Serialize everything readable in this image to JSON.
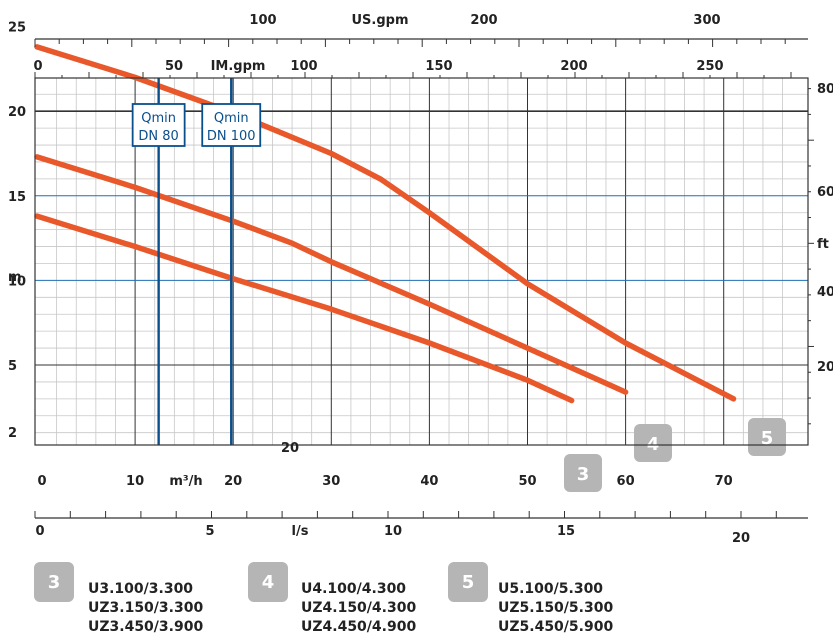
{
  "chart_data": {
    "type": "line",
    "title": "",
    "x": {
      "unit": "m³/h",
      "range": [
        0,
        78
      ],
      "ticks": [
        0,
        10,
        20,
        30,
        40,
        50,
        60,
        70
      ],
      "extra_label": "20"
    },
    "y": {
      "unit": "m",
      "range": [
        0,
        25
      ],
      "ticks": [
        2,
        5,
        10,
        15,
        20,
        25
      ]
    },
    "secondary_axes": {
      "us_gpm": {
        "label": "US.gpm",
        "ticks": [
          100,
          200,
          300
        ]
      },
      "im_gpm": {
        "label": "IM.gpm",
        "ticks": [
          0,
          50,
          100,
          150,
          200,
          250
        ]
      },
      "ls": {
        "label": "l/s",
        "ticks": [
          0,
          5,
          10,
          15,
          20
        ]
      },
      "ft": {
        "label": "ft",
        "ticks": [
          20,
          40,
          60,
          80
        ]
      }
    },
    "qmin_lines": [
      {
        "label_line1": "Qmin",
        "label_line2": "DN 80",
        "x": 12.4
      },
      {
        "label_line1": "Qmin",
        "label_line2": "DN 100",
        "x": 19.8
      }
    ],
    "series": [
      {
        "name": "3",
        "color": "#e8582a",
        "points": [
          [
            0,
            13.8
          ],
          [
            10,
            12.0
          ],
          [
            20,
            10.1
          ],
          [
            30,
            8.3
          ],
          [
            40,
            6.3
          ],
          [
            50,
            4.1
          ],
          [
            54.5,
            2.9
          ]
        ]
      },
      {
        "name": "4",
        "color": "#e8582a",
        "points": [
          [
            0,
            17.3
          ],
          [
            10,
            15.5
          ],
          [
            20,
            13.5
          ],
          [
            26,
            12.2
          ],
          [
            30,
            11.1
          ],
          [
            40,
            8.6
          ],
          [
            50,
            6.0
          ],
          [
            60,
            3.4
          ]
        ]
      },
      {
        "name": "5",
        "color": "#e8582a",
        "points": [
          [
            0,
            23.8
          ],
          [
            10,
            22.0
          ],
          [
            20,
            19.9
          ],
          [
            30,
            17.5
          ],
          [
            35,
            16.0
          ],
          [
            40,
            14.0
          ],
          [
            50,
            9.8
          ],
          [
            60,
            6.3
          ],
          [
            71,
            3.0
          ]
        ]
      }
    ],
    "grid": true
  },
  "legend": [
    {
      "badge": "3",
      "line1": "U3.100/3.300",
      "line2": "UZ3.150/3.300",
      "line3": "UZ3.450/3.900"
    },
    {
      "badge": "4",
      "line1": "U4.100/4.300",
      "line2": "UZ4.150/4.300",
      "line3": "UZ4.450/4.900"
    },
    {
      "badge": "5",
      "line1": "U5.100/5.300",
      "line2": "UZ5.150/5.300",
      "line3": "UZ5.450/5.900"
    }
  ],
  "colors": {
    "curve": "#e8582a",
    "qmin": "#0a4f8c",
    "badge": "#b5b5b5",
    "grid": "#c7c7c7"
  }
}
